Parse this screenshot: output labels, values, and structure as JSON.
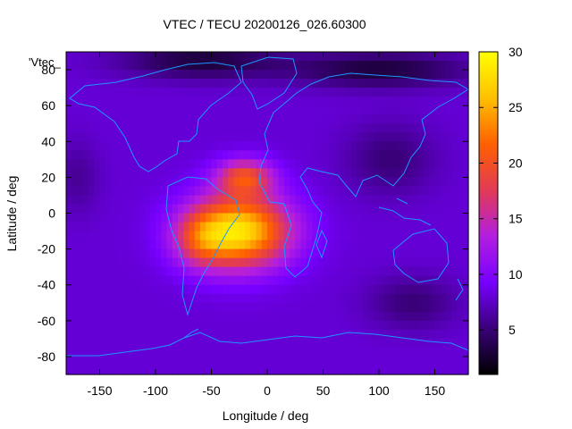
{
  "chart_data": {
    "type": "heatmap",
    "title": "VTEC / TECU 20200126_026.60300",
    "xlabel": "Longitude / deg",
    "ylabel": "Latitude / deg",
    "xlim": [
      -180,
      180
    ],
    "ylim": [
      -90,
      90
    ],
    "series_label": "'Vtec_",
    "xticks": [
      -150,
      -100,
      -50,
      0,
      50,
      100,
      150
    ],
    "yticks": [
      -80,
      -60,
      -40,
      -20,
      0,
      20,
      40,
      60,
      80
    ],
    "colorbar": {
      "range": [
        1,
        30
      ],
      "ticks": [
        5,
        10,
        15,
        20,
        25,
        30
      ],
      "colormap": [
        "#000000",
        "#3a007a",
        "#7700ff",
        "#b31ee0",
        "#e23a55",
        "#ff6000",
        "#ffc000",
        "#ffff00"
      ]
    },
    "field": {
      "background": 8,
      "blobs": [
        {
          "lon": -25,
          "lat": -10,
          "sx": 45,
          "sy": 20,
          "amp": 20
        },
        {
          "lon": -20,
          "lat": 20,
          "sx": 25,
          "sy": 10,
          "amp": 11
        },
        {
          "lon": -60,
          "lat": -15,
          "sx": 25,
          "sy": 15,
          "amp": 6
        },
        {
          "lon": -60,
          "lat": 85,
          "sx": 70,
          "sy": 10,
          "amp": -5
        },
        {
          "lon": 100,
          "lat": 80,
          "sx": 80,
          "sy": 10,
          "amp": -5
        },
        {
          "lon": 110,
          "lat": 30,
          "sx": 40,
          "sy": 20,
          "amp": -3
        },
        {
          "lon": 130,
          "lat": -50,
          "sx": 40,
          "sy": 15,
          "amp": -3
        },
        {
          "lon": -170,
          "lat": 20,
          "sx": 20,
          "sy": 20,
          "amp": -2
        }
      ]
    }
  }
}
